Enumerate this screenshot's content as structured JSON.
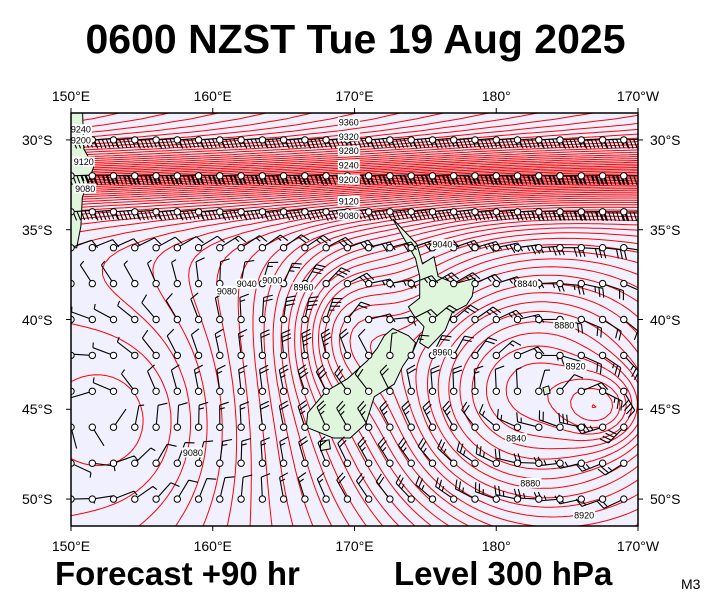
{
  "header": {
    "title": "0600 NZST Tue 19 Aug 2025"
  },
  "footer": {
    "forecast": "Forecast +90 hr",
    "level": "Level 300 hPa",
    "model": "M3"
  },
  "map": {
    "projection": "equirectangular",
    "lon_range": [
      150,
      190
    ],
    "lat_range": [
      -51.5,
      -28.5
    ],
    "colors": {
      "ocean": "#f0f0ff",
      "land": "#dff5dc",
      "contour": "#ff0000",
      "coast": "#000000",
      "frame": "#000000"
    },
    "lon_ticks": [
      {
        "lon": 150,
        "label": "150°E"
      },
      {
        "lon": 160,
        "label": "160°E"
      },
      {
        "lon": 170,
        "label": "170°E"
      },
      {
        "lon": 180,
        "label": "180°"
      },
      {
        "lon": 190,
        "label": "170°W"
      }
    ],
    "lat_ticks": [
      {
        "lat": -30,
        "label": "30°S"
      },
      {
        "lat": -35,
        "label": "35°S"
      },
      {
        "lat": -40,
        "label": "40°S"
      },
      {
        "lat": -45,
        "label": "45°S"
      },
      {
        "lat": -50,
        "label": "50°S"
      }
    ],
    "contour_labels": [
      {
        "text": "9240",
        "lon": 150.7,
        "lat": -29.4
      },
      {
        "text": "9200",
        "lon": 150.7,
        "lat": -30.0
      },
      {
        "text": "9120",
        "lon": 150.9,
        "lat": -31.2
      },
      {
        "text": "9080",
        "lon": 151.0,
        "lat": -32.7
      },
      {
        "text": "9360",
        "lon": 169.6,
        "lat": -29.0
      },
      {
        "text": "9320",
        "lon": 169.6,
        "lat": -29.8
      },
      {
        "text": "9280",
        "lon": 169.6,
        "lat": -30.6
      },
      {
        "text": "9240",
        "lon": 169.6,
        "lat": -31.4
      },
      {
        "text": "9200",
        "lon": 169.6,
        "lat": -32.2
      },
      {
        "text": "9120",
        "lon": 169.6,
        "lat": -33.4
      },
      {
        "text": "9080",
        "lon": 169.6,
        "lat": -34.2
      },
      {
        "text": "9040",
        "lon": 176.2,
        "lat": -35.8
      },
      {
        "text": "9080",
        "lon": 161.0,
        "lat": -38.4
      },
      {
        "text": "9040",
        "lon": 162.4,
        "lat": -38.0
      },
      {
        "text": "9000",
        "lon": 164.2,
        "lat": -37.8
      },
      {
        "text": "8960",
        "lon": 166.4,
        "lat": -38.2
      },
      {
        "text": "8840",
        "lon": 182.2,
        "lat": -38.0
      },
      {
        "text": "8880",
        "lon": 184.8,
        "lat": -40.3
      },
      {
        "text": "8920",
        "lon": 185.6,
        "lat": -42.6
      },
      {
        "text": "8960",
        "lon": 176.2,
        "lat": -41.8
      },
      {
        "text": "9080",
        "lon": 158.6,
        "lat": -47.4
      },
      {
        "text": "8840",
        "lon": 181.4,
        "lat": -46.6
      },
      {
        "text": "8880",
        "lon": 182.4,
        "lat": -49.1
      },
      {
        "text": "8920",
        "lon": 186.2,
        "lat": -50.9
      }
    ]
  }
}
